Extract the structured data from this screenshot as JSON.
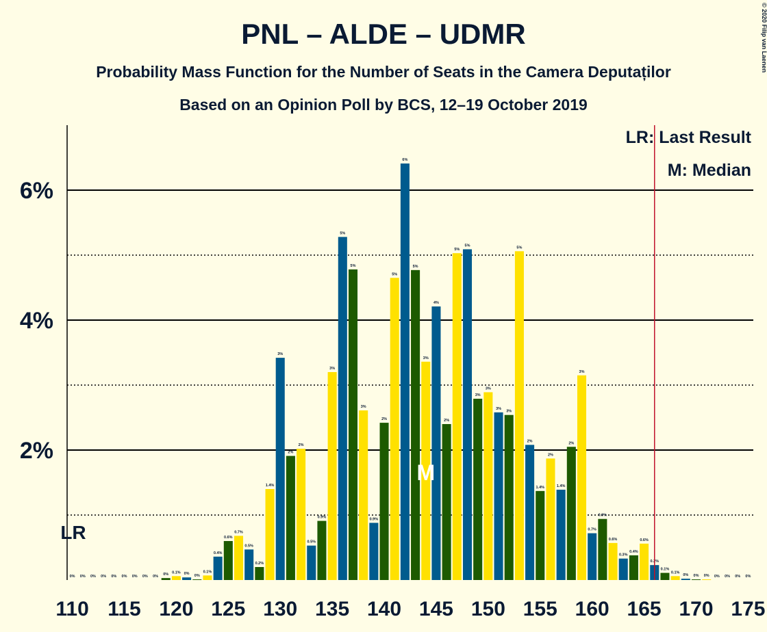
{
  "chart_data": {
    "type": "bar",
    "title": "PNL – ALDE – UDMR",
    "subtitle": "Probability Mass Function for the Number of Seats in the Camera Deputaților",
    "subtitle2": "Based on an Opinion Poll by BCS, 12–19 October 2019",
    "copyright": "© 2020 Filip van Laenen",
    "x": [
      110,
      111,
      112,
      113,
      114,
      115,
      116,
      117,
      118,
      119,
      120,
      121,
      122,
      123,
      124,
      125,
      126,
      127,
      128,
      129,
      130,
      131,
      132,
      133,
      134,
      135,
      136,
      137,
      138,
      139,
      140,
      141,
      142,
      143,
      144,
      145,
      146,
      147,
      148,
      149,
      150,
      151,
      152,
      153,
      154,
      155,
      156,
      157,
      158,
      159,
      160,
      161,
      162,
      163,
      164,
      165,
      166,
      167,
      168,
      169,
      170,
      171,
      172,
      173,
      174,
      175
    ],
    "values": [
      0,
      0,
      0,
      0,
      0,
      0,
      0,
      0,
      0,
      0.03,
      0.06,
      0.04,
      0.01,
      0.07,
      0.36,
      0.6,
      0.68,
      0.47,
      0.2,
      1.4,
      3.42,
      1.91,
      2.02,
      0.53,
      0.91,
      3.2,
      5.28,
      4.78,
      2.61,
      0.88,
      2.42,
      4.65,
      6.41,
      4.77,
      3.36,
      4.21,
      2.4,
      5.03,
      5.09,
      2.79,
      2.89,
      2.58,
      2.54,
      5.06,
      2.08,
      1.37,
      1.87,
      1.39,
      2.05,
      3.15,
      0.72,
      0.94,
      0.57,
      0.33,
      0.38,
      0.56,
      0.23,
      0.11,
      0.06,
      0.02,
      0.01,
      0.01,
      0,
      0,
      0,
      0
    ],
    "value_labels": [
      "0%",
      "0%",
      "0%",
      "0%",
      "0%",
      "0%",
      "0%",
      "0%",
      "0%",
      "0%",
      "0.1%",
      "0%",
      "0%",
      "0.1%",
      "0.4%",
      "0.6%",
      "0.7%",
      "0.5%",
      "0.2%",
      "1.4%",
      "3%",
      "2%",
      "2%",
      "0.5%",
      "0.9%",
      "3%",
      "5%",
      "5%",
      "3%",
      "0.9%",
      "2%",
      "5%",
      "6%",
      "5%",
      "3%",
      "4%",
      "2%",
      "5%",
      "5%",
      "3%",
      "3%",
      "3%",
      "3%",
      "5%",
      "2%",
      "1.4%",
      "2%",
      "1.4%",
      "2%",
      "3%",
      "0.7%",
      "0.9%",
      "0.6%",
      "0.3%",
      "0.4%",
      "0.6%",
      "0.2%",
      "0.1%",
      "0.1%",
      "0%",
      "0%",
      "0%",
      "0%",
      "0%",
      "0%",
      "0%"
    ],
    "colors": [
      "#1d5a00",
      "#ffe100",
      "#005b8e"
    ],
    "xlim": [
      109.5,
      175.5
    ],
    "xticks": [
      110,
      115,
      120,
      125,
      130,
      135,
      140,
      145,
      150,
      155,
      160,
      165,
      170,
      175
    ],
    "ylim": [
      0,
      7
    ],
    "yticks": [
      {
        "value": 2,
        "label": "2%"
      },
      {
        "value": 4,
        "label": "4%"
      },
      {
        "value": 6,
        "label": "6%"
      }
    ],
    "minor_yticks": [
      1,
      3,
      5
    ],
    "grid": true,
    "last_result": 166,
    "last_result_label": "LR",
    "median": 144,
    "median_label": "M",
    "legend": [
      "LR: Last Result",
      "M: Median"
    ]
  }
}
